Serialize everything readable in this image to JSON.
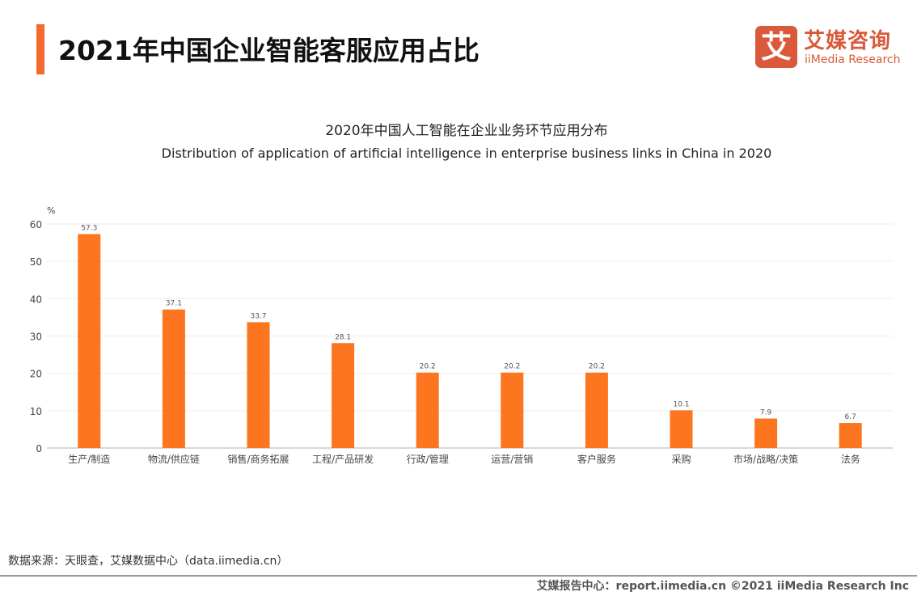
{
  "header": {
    "title": "2021年中国企业智能客服应用占比"
  },
  "logo": {
    "mark": "艾",
    "cn": "艾媒咨询",
    "en": "iiMedia Research",
    "color": "#d9593a"
  },
  "chart_data": {
    "type": "bar",
    "title": "2020年中国人工智能在企业业务环节应用分布",
    "subtitle": "Distribution of application of artificial intelligence in enterprise business links in China in 2020",
    "ylabel": "%",
    "xlabel": "",
    "ylim": [
      0,
      60
    ],
    "yticks": [
      "0",
      "10",
      "20",
      "30",
      "40",
      "50",
      "60"
    ],
    "grid": true,
    "bar_color": "#fd751f",
    "categories": [
      "生产/制造",
      "物流/供应链",
      "销售/商务拓展",
      "工程/产品研发",
      "行政/管理",
      "运营/营销",
      "客户服务",
      "采购",
      "市场/战略/决策",
      "法务"
    ],
    "values": [
      57.3,
      37.1,
      33.7,
      28.1,
      20.2,
      20.2,
      20.2,
      10.1,
      7.9,
      6.7
    ],
    "data_labels": [
      "57.3",
      "37.1",
      "33.7",
      "28.1",
      "20.2",
      "20.2",
      "20.2",
      "10.1",
      "7.9",
      "6.7"
    ]
  },
  "footer": {
    "source": "数据来源：天眼查，艾媒数据中心（data.iimedia.cn）",
    "credit": "艾媒报告中心：report.iimedia.cn   ©2021  iiMedia Research  Inc"
  }
}
